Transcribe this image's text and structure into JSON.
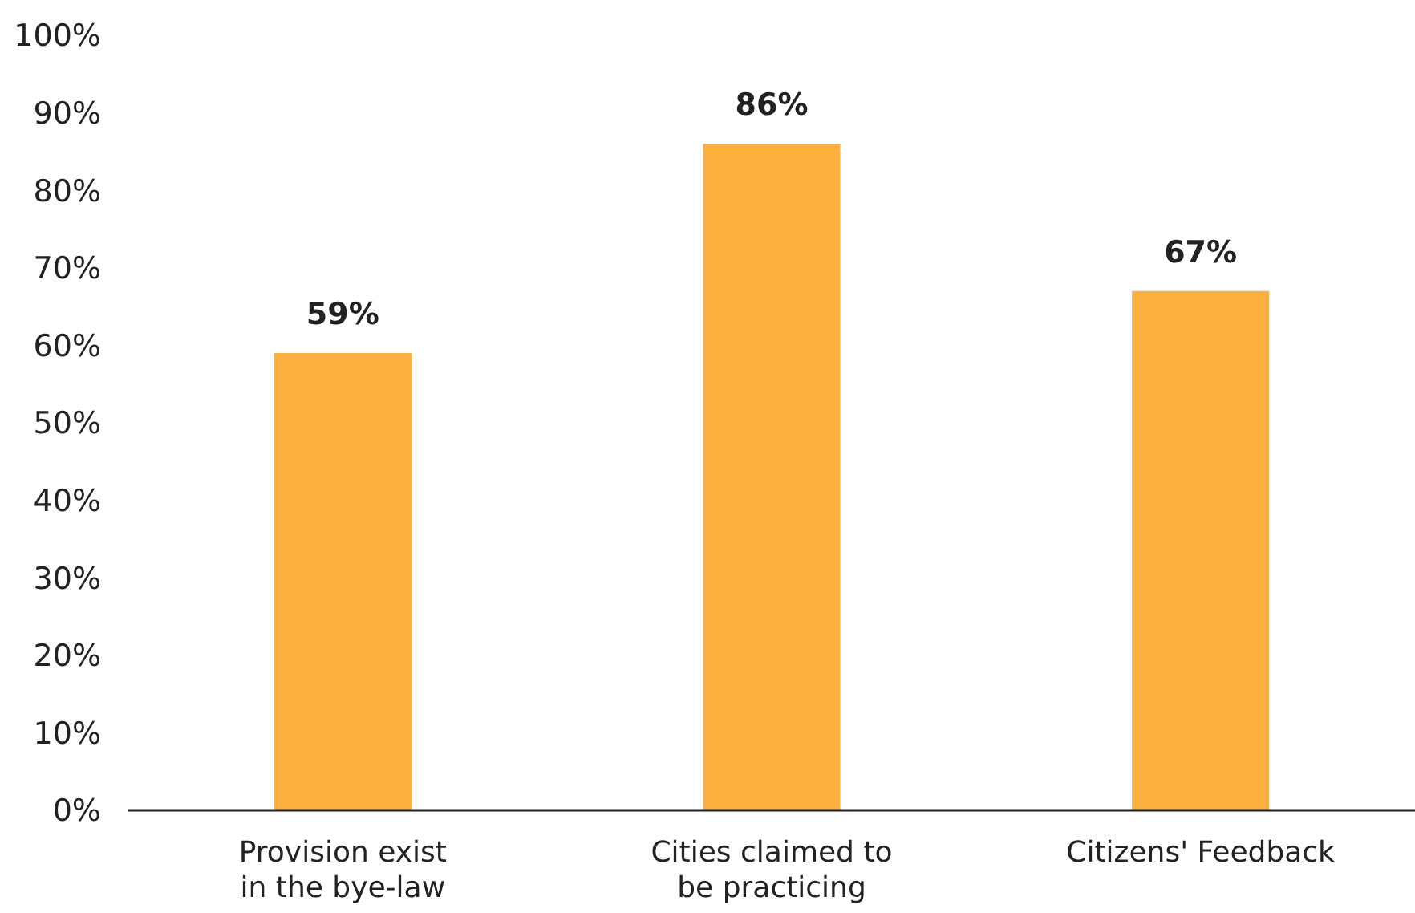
{
  "chart_data": {
    "type": "bar",
    "categories": [
      "Provision exist\nin the bye-law",
      "Cities claimed to\nbe practicing",
      "Citizens' Feedback"
    ],
    "values": [
      59,
      86,
      67
    ],
    "color": "#fbb040",
    "value_labels": [
      "59%",
      "86%",
      "67%"
    ],
    "ylim": [
      0,
      100
    ],
    "yticks": [
      {
        "value": 0,
        "label": "0%"
      },
      {
        "value": 10,
        "label": "10%"
      },
      {
        "value": 20,
        "label": "20%"
      },
      {
        "value": 30,
        "label": "30%"
      },
      {
        "value": 40,
        "label": "40%"
      },
      {
        "value": 50,
        "label": "50%"
      },
      {
        "value": 60,
        "label": "60%"
      },
      {
        "value": 70,
        "label": "70%"
      },
      {
        "value": 80,
        "label": "80%"
      },
      {
        "value": 90,
        "label": "90%"
      },
      {
        "value": 100,
        "label": "100%"
      }
    ],
    "grid": false
  }
}
